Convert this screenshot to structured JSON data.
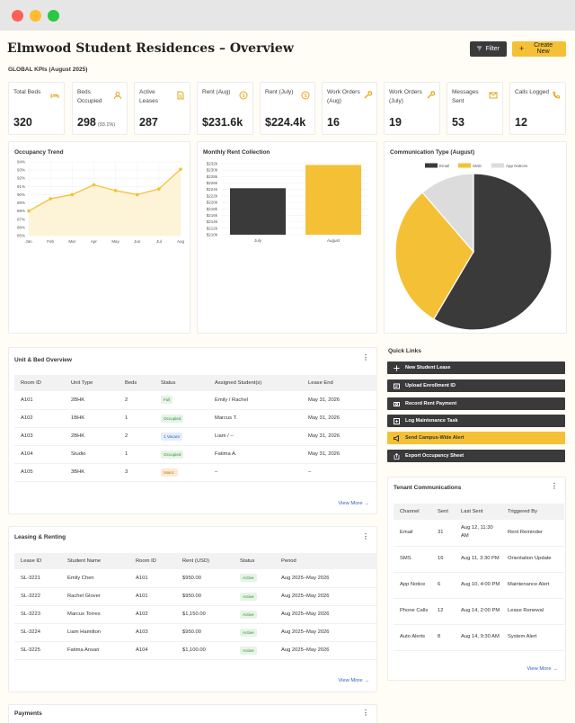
{
  "window": {
    "controls": [
      "close",
      "minimize",
      "zoom"
    ]
  },
  "header": {
    "title": "Elmwood Student Residences – Overview",
    "filter_label": "Filter",
    "create_label": "Create New"
  },
  "kpi_section_label": "GLOBAL KPIs (August 2025)",
  "kpis": [
    {
      "label": "Total Beds",
      "value": "320",
      "icon": "bed-icon"
    },
    {
      "label": "Beds Occupied",
      "value": "298",
      "sub": "(93.1%)",
      "icon": "user-icon"
    },
    {
      "label": "Active Leases",
      "value": "287",
      "icon": "document-icon"
    },
    {
      "label": "Rent (Aug)",
      "value": "$231.6k",
      "icon": "dollar-icon"
    },
    {
      "label": "Rent (July)",
      "value": "$224.4k",
      "icon": "dollar-icon"
    },
    {
      "label": "Work Orders (Aug)",
      "value": "16",
      "icon": "wrench-icon"
    },
    {
      "label": "Work Orders (July)",
      "value": "19",
      "icon": "wrench-icon"
    },
    {
      "label": "Messages Sent",
      "value": "53",
      "icon": "mail-icon"
    },
    {
      "label": "Calls Logged",
      "value": "12",
      "icon": "phone-icon"
    }
  ],
  "colors": {
    "accent": "#f4c035",
    "dark": "#3a3a3a",
    "light_gray": "#dcdcdc"
  },
  "chart_data": [
    {
      "type": "line",
      "title": "Occupancy Trend",
      "x": [
        "Jan",
        "Feb",
        "Mar",
        "Apr",
        "May",
        "Jun",
        "Jul",
        "Aug"
      ],
      "y": [
        88,
        89.5,
        90,
        91.2,
        90.5,
        90,
        90.7,
        93.1
      ],
      "yticks": [
        "85%",
        "86%",
        "87%",
        "88%",
        "89%",
        "90%",
        "91%",
        "92%",
        "93%",
        "94%"
      ],
      "ylim": [
        85,
        94
      ],
      "area_fill": true,
      "grid": true
    },
    {
      "type": "bar",
      "title": "Monthly Rent Collection",
      "categories": [
        "July",
        "August"
      ],
      "values": [
        224.4,
        231.6
      ],
      "yticks": [
        "$210k",
        "$212k",
        "$214k",
        "$216k",
        "$218k",
        "$220k",
        "$222k",
        "$224k",
        "$226k",
        "$228k",
        "$230k",
        "$232k"
      ],
      "ylim": [
        210,
        232
      ],
      "grid": true
    },
    {
      "type": "pie",
      "title": "Communication Type (August)",
      "series": [
        {
          "name": "Email",
          "value": 31
        },
        {
          "name": "SMS",
          "value": 16
        },
        {
          "name": "App Notices",
          "value": 6
        }
      ],
      "legend_position": "top"
    }
  ],
  "units": {
    "title": "Unit & Bed Overview",
    "columns": [
      "Room ID",
      "Unit Type",
      "Beds",
      "Status",
      "Assigned Student(s)",
      "Lease End"
    ],
    "rows": [
      [
        "A101",
        "2BHK",
        "2",
        "Full",
        "Emily / Rachel",
        "May 31, 2026"
      ],
      [
        "A102",
        "1BHK",
        "1",
        "Occupied",
        "Marcus T.",
        "May 31, 2026"
      ],
      [
        "A103",
        "2BHK",
        "2",
        "1 Vacant",
        "Liam / –",
        "May 31, 2026"
      ],
      [
        "A104",
        "Studio",
        "1",
        "Occupied",
        "Fatima A.",
        "May 31, 2026"
      ],
      [
        "A105",
        "3BHK",
        "3",
        "Maint.",
        "–",
        "–"
      ]
    ],
    "view_more": "View More →"
  },
  "leasing": {
    "title": "Leasing & Renting",
    "columns": [
      "Lease ID",
      "Student Name",
      "Room ID",
      "Rent (USD)",
      "Status",
      "Period"
    ],
    "rows": [
      [
        "SL-3221",
        "Emily Chen",
        "A101",
        "$950.00",
        "Active",
        "Aug 2025–May 2026"
      ],
      [
        "SL-3222",
        "Rachel Glover",
        "A101",
        "$950.00",
        "Active",
        "Aug 2025–May 2026"
      ],
      [
        "SL-3223",
        "Marcus Torres",
        "A102",
        "$1,150.00",
        "Active",
        "Aug 2025–May 2026"
      ],
      [
        "SL-3224",
        "Liam Hamilton",
        "A103",
        "$950.00",
        "Active",
        "Aug 2025–May 2026"
      ],
      [
        "SL-3225",
        "Fatima Ansari",
        "A104",
        "$1,100.00",
        "Active",
        "Aug 2025–May 2026"
      ]
    ],
    "view_more": "View More →"
  },
  "payments": {
    "title": "Payments"
  },
  "quick_links": {
    "title": "Quick Links",
    "items": [
      {
        "label": "New Student Lease",
        "icon": "plus-icon"
      },
      {
        "label": "Upload Enrollment ID",
        "icon": "id-card-icon"
      },
      {
        "label": "Record Rent Payment",
        "icon": "cash-icon"
      },
      {
        "label": "Log Maintenance Task",
        "icon": "add-box-icon"
      },
      {
        "label": "Send Campus-Wide Alert",
        "icon": "megaphone-icon"
      },
      {
        "label": "Export Occupancy Sheet",
        "icon": "export-icon"
      }
    ]
  },
  "tenant_comms": {
    "title": "Tenant Communications",
    "columns": [
      "Channel",
      "Sent",
      "Last Sent",
      "Triggered By"
    ],
    "rows": [
      [
        "Email",
        "31",
        "Aug 12, 11:30 AM",
        "Rent Reminder"
      ],
      [
        "SMS",
        "16",
        "Aug 11, 3:30 PM",
        "Orientation Update"
      ],
      [
        "App Notice",
        "6",
        "Aug 10, 4:00 PM",
        "Maintenance Alert"
      ],
      [
        "Phone Calls",
        "12",
        "Aug 14, 2:00 PM",
        "Lease Renewal"
      ],
      [
        "Auto Alerts",
        "8",
        "Aug 14, 9:30 AM",
        "System Alert"
      ]
    ],
    "view_more": "View More →"
  }
}
